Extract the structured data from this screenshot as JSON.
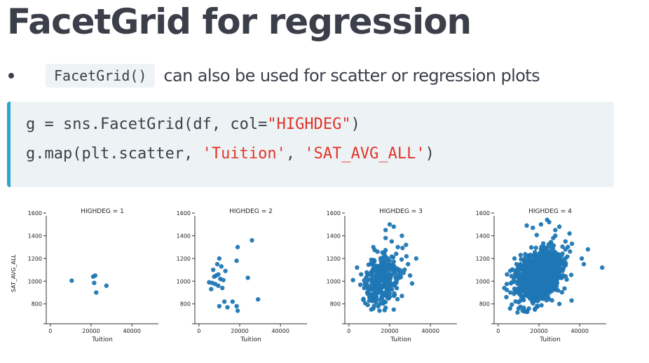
{
  "slide": {
    "title": "FacetGrid for regression",
    "bullet": {
      "code": "FacetGrid()",
      "text": "can also be used for scatter or regression plots"
    },
    "code_lines": [
      [
        {
          "t": "g = sns.FacetGrid(df, col="
        },
        {
          "t": "\"HIGHDEG\"",
          "s": 1
        },
        {
          "t": ")"
        }
      ],
      [
        {
          "t": "g.map(plt.scatter, "
        },
        {
          "t": "'Tuition'",
          "s": 1
        },
        {
          "t": ", "
        },
        {
          "t": "'SAT_AVG_ALL'",
          "s": 1
        },
        {
          "t": ")"
        }
      ]
    ]
  },
  "colors": {
    "point": "#1f77b4",
    "string": "#e2332b",
    "accent": "#2aa6c8"
  },
  "chart_data": [
    {
      "type": "scatter",
      "title": "HIGHDEG = 1",
      "xlabel": "Tuition",
      "ylabel": "SAT_AVG_ALL",
      "xlim": [
        -2000,
        53000
      ],
      "ylim": [
        650,
        1600
      ],
      "xticks": [
        0,
        20000,
        40000
      ],
      "yticks": [
        800,
        1000,
        1200,
        1400,
        1600
      ],
      "points": [
        [
          10500,
          1005
        ],
        [
          21000,
          1040
        ],
        [
          22000,
          1050
        ],
        [
          21500,
          985
        ],
        [
          22500,
          900
        ],
        [
          27500,
          960
        ]
      ]
    },
    {
      "type": "scatter",
      "title": "HIGHDEG = 2",
      "xlabel": "Tuition",
      "ylabel": "",
      "xlim": [
        -2000,
        53000
      ],
      "ylim": [
        650,
        1600
      ],
      "xticks": [
        0,
        20000,
        40000
      ],
      "yticks": [
        800,
        1000,
        1200,
        1400,
        1600
      ],
      "points": [
        [
          26000,
          1360
        ],
        [
          19000,
          1300
        ],
        [
          18500,
          1180
        ],
        [
          10000,
          1200
        ],
        [
          9000,
          1150
        ],
        [
          11000,
          1130
        ],
        [
          9500,
          1060
        ],
        [
          7500,
          1040
        ],
        [
          8500,
          1050
        ],
        [
          10500,
          1020
        ],
        [
          12000,
          1010
        ],
        [
          5000,
          990
        ],
        [
          6500,
          985
        ],
        [
          8000,
          975
        ],
        [
          9500,
          960
        ],
        [
          11500,
          940
        ],
        [
          6000,
          930
        ],
        [
          7000,
          1100
        ],
        [
          24000,
          1030
        ],
        [
          10000,
          780
        ],
        [
          12500,
          820
        ],
        [
          14000,
          770
        ],
        [
          18500,
          780
        ],
        [
          19000,
          740
        ],
        [
          16500,
          820
        ],
        [
          29000,
          840
        ],
        [
          13000,
          1090
        ]
      ]
    },
    {
      "type": "scatter",
      "title": "HIGHDEG = 3",
      "xlabel": "Tuition",
      "ylabel": "",
      "xlim": [
        -2000,
        53000
      ],
      "ylim": [
        650,
        1600
      ],
      "xticks": [
        0,
        20000,
        40000
      ],
      "yticks": [
        800,
        1000,
        1200,
        1400,
        1600
      ],
      "density": {
        "n": 300,
        "cx": 16000,
        "cy": 1020,
        "sx": 5500,
        "sy": 150
      },
      "points": [
        [
          20000,
          1500
        ],
        [
          22000,
          1480
        ],
        [
          18000,
          1450
        ],
        [
          26000,
          1400
        ],
        [
          28000,
          1320
        ],
        [
          24000,
          1300
        ],
        [
          2000,
          1010
        ],
        [
          4000,
          1120
        ],
        [
          6000,
          1060
        ],
        [
          30000,
          1050
        ],
        [
          31000,
          980
        ],
        [
          33000,
          1200
        ],
        [
          29000,
          1150
        ],
        [
          10000,
          830
        ],
        [
          12000,
          760
        ],
        [
          15000,
          740
        ],
        [
          22000,
          750
        ],
        [
          26000,
          870
        ],
        [
          9000,
          900
        ],
        [
          18000,
          1380
        ],
        [
          12000,
          1300
        ],
        [
          14000,
          1260
        ],
        [
          21000,
          1350
        ]
      ]
    },
    {
      "type": "scatter",
      "title": "HIGHDEG = 4",
      "xlabel": "Tuition",
      "ylabel": "",
      "xlim": [
        -2000,
        53000
      ],
      "ylim": [
        650,
        1600
      ],
      "xticks": [
        0,
        20000,
        40000
      ],
      "yticks": [
        800,
        1000,
        1200,
        1400,
        1600
      ],
      "density": {
        "n": 1400,
        "cx": 20000,
        "cy": 1050,
        "sx": 7500,
        "sy": 140
      },
      "points": [
        [
          51000,
          1120
        ],
        [
          44000,
          1280
        ],
        [
          41000,
          1200
        ],
        [
          42000,
          1150
        ],
        [
          24000,
          1540
        ],
        [
          25000,
          1520
        ],
        [
          21000,
          1500
        ],
        [
          30000,
          1480
        ],
        [
          28000,
          1450
        ],
        [
          14000,
          1490
        ],
        [
          17000,
          1470
        ],
        [
          4000,
          860
        ],
        [
          6000,
          900
        ],
        [
          3000,
          940
        ],
        [
          10000,
          760
        ],
        [
          12000,
          740
        ],
        [
          14000,
          730
        ],
        [
          18000,
          750
        ],
        [
          30000,
          800
        ],
        [
          36000,
          830
        ],
        [
          33000,
          1350
        ],
        [
          35000,
          1420
        ],
        [
          27000,
          1380
        ],
        [
          8000,
          1200
        ],
        [
          9000,
          1150
        ],
        [
          11000,
          1230
        ]
      ]
    }
  ]
}
